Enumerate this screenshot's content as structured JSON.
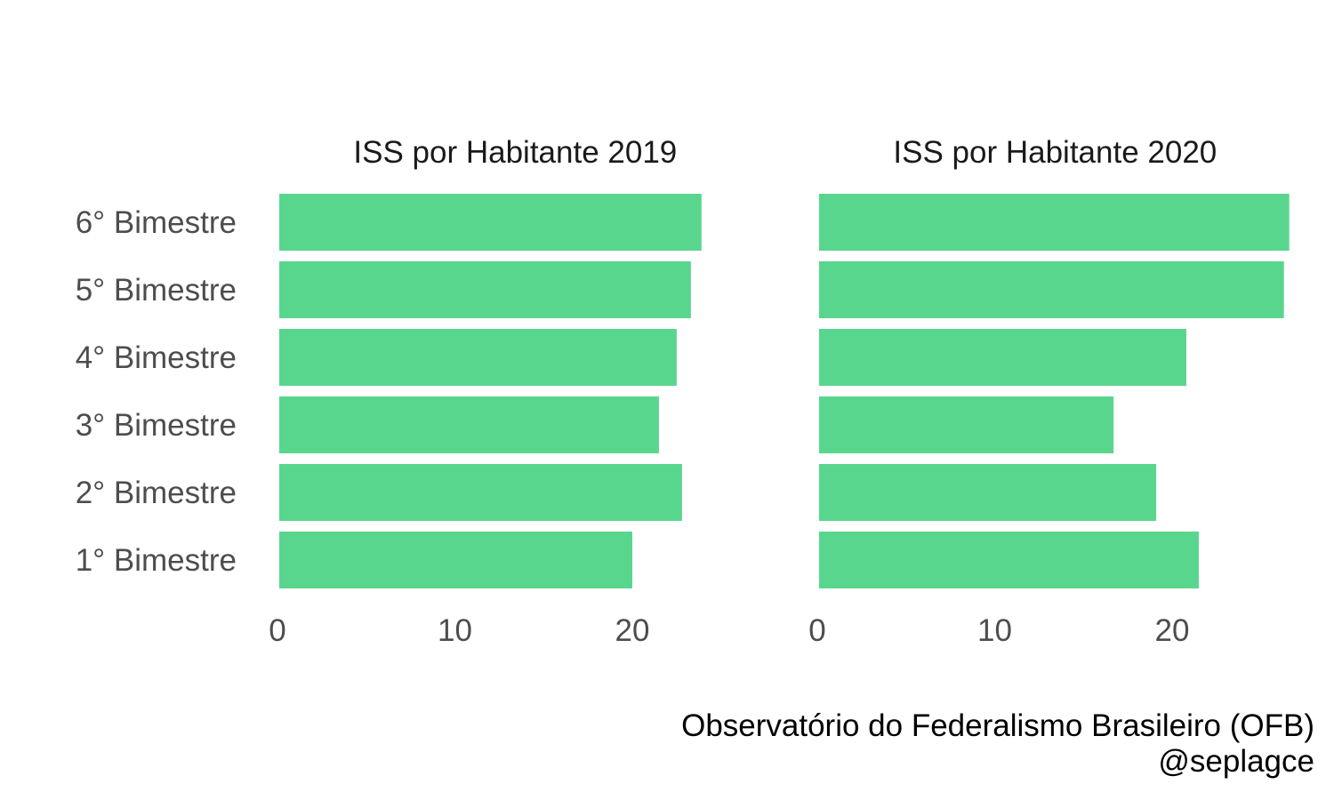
{
  "colors": {
    "bar": "#59d68e",
    "axis_text": "#4d4d4d",
    "title_text": "#1a1a1a",
    "caption_text": "#000000",
    "background": "#ffffff"
  },
  "chart_data": [
    {
      "type": "bar",
      "orientation": "horizontal",
      "title": "ISS por Habitante 2019",
      "categories": [
        "1° Bimestre",
        "2° Bimestre",
        "3° Bimestre",
        "4° Bimestre",
        "5° Bimestre",
        "6° Bimestre"
      ],
      "values": [
        19.9,
        22.7,
        21.4,
        22.4,
        23.2,
        23.8
      ],
      "xticks": [
        0,
        10,
        20
      ],
      "xlim": [
        0,
        26.6
      ],
      "grid": false,
      "legend": "none"
    },
    {
      "type": "bar",
      "orientation": "horizontal",
      "title": "ISS por Habitante 2020",
      "categories": [
        "1° Bimestre",
        "2° Bimestre",
        "3° Bimestre",
        "4° Bimestre",
        "5° Bimestre",
        "6° Bimestre"
      ],
      "values": [
        21.4,
        19.0,
        16.6,
        20.7,
        26.2,
        26.5
      ],
      "xticks": [
        0,
        10,
        20
      ],
      "xlim": [
        0,
        26.6
      ],
      "grid": false,
      "legend": "none"
    }
  ],
  "caption": {
    "line1": "Observatório do Federalismo Brasileiro (OFB)",
    "line2": "@seplagce"
  }
}
